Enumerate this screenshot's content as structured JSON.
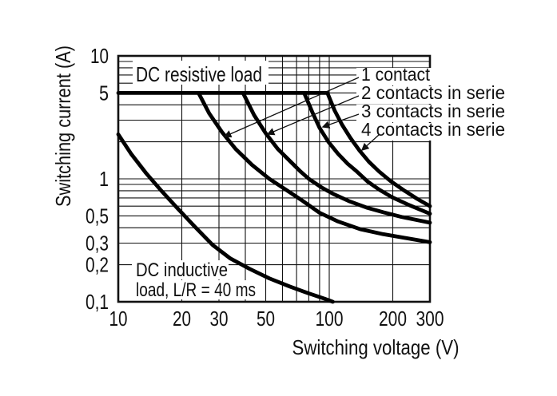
{
  "colors": {
    "ink": "#111111",
    "curve": "#000000",
    "bg": "#ffffff"
  },
  "chart_data": {
    "type": "line",
    "title": "",
    "xlabel": "Switching voltage (V)",
    "ylabel": "Switching current (A)",
    "x_scale": "log",
    "y_scale": "log",
    "xlim": [
      10,
      300
    ],
    "ylim": [
      0.1,
      10
    ],
    "grid": "full log-log grid, black on white",
    "legend_position": "upper right, leader arrows to curves",
    "x_ticks": [
      {
        "v": 10,
        "label": "10"
      },
      {
        "v": 20,
        "label": "20"
      },
      {
        "v": 30,
        "label": "30"
      },
      {
        "v": 50,
        "label": "50"
      },
      {
        "v": 100,
        "label": "100"
      },
      {
        "v": 200,
        "label": "200"
      },
      {
        "v": 300,
        "label": "300"
      }
    ],
    "x_minor_gridlines": [
      40,
      60,
      70,
      80,
      90
    ],
    "y_ticks": [
      {
        "v": 10,
        "label": "10"
      },
      {
        "v": 5,
        "label": "5"
      },
      {
        "v": 1,
        "label": "1"
      },
      {
        "v": 0.5,
        "label": "0,5"
      },
      {
        "v": 0.3,
        "label": "0,3"
      },
      {
        "v": 0.2,
        "label": "0,2"
      },
      {
        "v": 0.1,
        "label": "0,1"
      }
    ],
    "y_minor_gridlines": [
      9,
      8,
      7,
      6,
      4,
      3,
      2,
      0.9,
      0.8,
      0.7,
      0.6,
      0.4
    ],
    "series": [
      {
        "name": "DC resistive load common 5 A ceiling",
        "points": [
          [
            10,
            5
          ],
          [
            98,
            5
          ]
        ]
      },
      {
        "name": "1 contact",
        "points": [
          [
            24,
            5
          ],
          [
            27,
            3.4
          ],
          [
            31,
            2.4
          ],
          [
            36,
            1.75
          ],
          [
            43,
            1.3
          ],
          [
            52,
            1.0
          ],
          [
            62,
            0.82
          ],
          [
            75,
            0.66
          ],
          [
            90,
            0.53
          ],
          [
            110,
            0.45
          ],
          [
            140,
            0.39
          ],
          [
            180,
            0.355
          ],
          [
            230,
            0.33
          ],
          [
            300,
            0.305
          ]
        ]
      },
      {
        "name": "2 contacts in serie",
        "points": [
          [
            39,
            5
          ],
          [
            44,
            3.3
          ],
          [
            50,
            2.35
          ],
          [
            57,
            1.75
          ],
          [
            65,
            1.4
          ],
          [
            73,
            1.15
          ],
          [
            80,
            1.0
          ],
          [
            92,
            0.85
          ],
          [
            105,
            0.75
          ],
          [
            125,
            0.655
          ],
          [
            150,
            0.585
          ],
          [
            180,
            0.535
          ],
          [
            220,
            0.49
          ],
          [
            300,
            0.44
          ]
        ]
      },
      {
        "name": "3 contacts in serie",
        "points": [
          [
            76,
            5
          ],
          [
            83,
            3.5
          ],
          [
            90,
            2.6
          ],
          [
            99,
            2.0
          ],
          [
            110,
            1.6
          ],
          [
            122,
            1.33
          ],
          [
            135,
            1.15
          ],
          [
            152,
            0.95
          ],
          [
            172,
            0.82
          ],
          [
            198,
            0.71
          ],
          [
            235,
            0.62
          ],
          [
            300,
            0.52
          ]
        ]
      },
      {
        "name": "4 contacts in serie",
        "points": [
          [
            98,
            5
          ],
          [
            106,
            3.6
          ],
          [
            115,
            2.75
          ],
          [
            126,
            2.15
          ],
          [
            139,
            1.7
          ],
          [
            154,
            1.38
          ],
          [
            172,
            1.15
          ],
          [
            195,
            0.96
          ],
          [
            225,
            0.81
          ],
          [
            260,
            0.69
          ],
          [
            300,
            0.6
          ]
        ]
      },
      {
        "name": "DC inductive load, L/R = 40 ms",
        "points": [
          [
            10,
            2.3
          ],
          [
            11.5,
            1.6
          ],
          [
            13.5,
            1.12
          ],
          [
            16,
            0.8
          ],
          [
            19,
            0.58
          ],
          [
            23,
            0.41
          ],
          [
            28,
            0.29
          ],
          [
            34,
            0.225
          ],
          [
            42,
            0.185
          ],
          [
            52,
            0.155
          ],
          [
            65,
            0.133
          ],
          [
            80,
            0.117
          ],
          [
            95,
            0.106
          ],
          [
            104,
            0.1
          ]
        ]
      }
    ],
    "annotations": [
      {
        "text": "DC resistive load",
        "region": "top left inside plot"
      },
      {
        "text": "DC inductive",
        "region": "bottom left inside plot, line 1"
      },
      {
        "text": "load, L/R = 40 ms",
        "region": "bottom left inside plot, line 2"
      }
    ]
  },
  "axis_titles": {
    "x": "Switching voltage (V)",
    "y": "Switching current (A)"
  },
  "annotations": {
    "resistive": "DC resistive load",
    "inductive_line1": "DC inductive",
    "inductive_line2": "load, L/R = 40 ms"
  },
  "legend": {
    "items": [
      {
        "label": "1 contact"
      },
      {
        "label": "2 contacts in serie"
      },
      {
        "label": "3 contacts in serie"
      },
      {
        "label": "4 contacts in serie"
      }
    ]
  }
}
